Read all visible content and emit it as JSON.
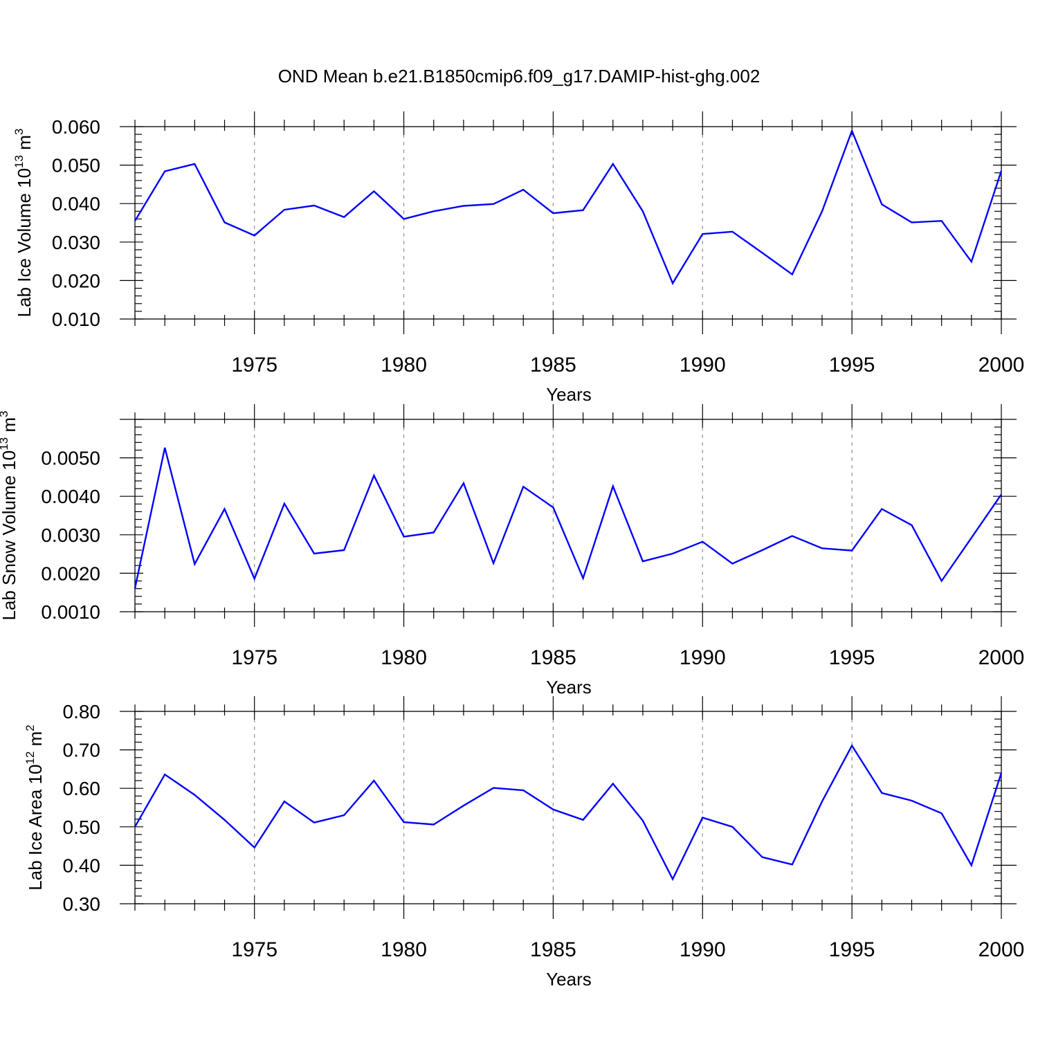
{
  "chart_data": [
    {
      "type": "line",
      "title": "OND Mean b.e21.B1850cmip6.f09_g17.DAMIP-hist-ghg.002",
      "xlabel": "Years",
      "ylabel": {
        "prefix": "Lab Ice Volume 10",
        "exponent": "13",
        "unit": " m",
        "unit_exponent": "3"
      },
      "xlim": [
        1971,
        2000
      ],
      "ylim": [
        0.01,
        0.06
      ],
      "yticks": [
        0.01,
        0.02,
        0.03,
        0.04,
        0.05,
        0.06
      ],
      "ytick_labels": [
        "0.010",
        "0.020",
        "0.030",
        "0.040",
        "0.050",
        "0.060"
      ],
      "xticks": [
        1975,
        1980,
        1985,
        1990,
        1995,
        2000
      ],
      "xtick_labels": [
        "1975",
        "1980",
        "1985",
        "1990",
        "1995",
        "2000"
      ],
      "grid": "dashed vertical lines at labeled x ticks",
      "color": "#0000ff",
      "x": [
        1971,
        1972,
        1973,
        1974,
        1975,
        1976,
        1977,
        1978,
        1979,
        1980,
        1981,
        1982,
        1983,
        1984,
        1985,
        1986,
        1987,
        1988,
        1989,
        1990,
        1991,
        1992,
        1993,
        1994,
        1995,
        1996,
        1997,
        1998,
        1999,
        2000
      ],
      "values": [
        0.0355,
        0.0484,
        0.0503,
        0.0351,
        0.0317,
        0.0384,
        0.0395,
        0.0365,
        0.0432,
        0.036,
        0.038,
        0.0394,
        0.0399,
        0.0436,
        0.0375,
        0.0383,
        0.0503,
        0.038,
        0.0193,
        0.0321,
        0.0327,
        0.0272,
        0.0216,
        0.038,
        0.0589,
        0.0398,
        0.0351,
        0.0355,
        0.0249,
        0.0485
      ]
    },
    {
      "type": "line",
      "title": "",
      "xlabel": "Years",
      "ylabel": {
        "prefix": "Lab Snow Volume 10",
        "exponent": "13",
        "unit": " m",
        "unit_exponent": "3"
      },
      "xlim": [
        1971,
        2000
      ],
      "ylim": [
        0.001,
        0.006
      ],
      "yticks": [
        0.001,
        0.002,
        0.003,
        0.004,
        0.005
      ],
      "ytick_labels": [
        "0.0010",
        "0.0020",
        "0.0030",
        "0.0040",
        "0.0050"
      ],
      "xticks": [
        1975,
        1980,
        1985,
        1990,
        1995,
        2000
      ],
      "xtick_labels": [
        "1975",
        "1980",
        "1985",
        "1990",
        "1995",
        "2000"
      ],
      "grid": "dashed vertical lines at labeled x ticks",
      "color": "#0000ff",
      "x": [
        1971,
        1972,
        1973,
        1974,
        1975,
        1976,
        1977,
        1978,
        1979,
        1980,
        1981,
        1982,
        1983,
        1984,
        1985,
        1986,
        1987,
        1988,
        1989,
        1990,
        1991,
        1992,
        1993,
        1994,
        1995,
        1996,
        1997,
        1998,
        1999,
        2000
      ],
      "values": [
        0.00161,
        0.00526,
        0.00224,
        0.00367,
        0.00186,
        0.00381,
        0.00251,
        0.0026,
        0.00454,
        0.00295,
        0.00306,
        0.00434,
        0.00226,
        0.00425,
        0.00371,
        0.00187,
        0.00426,
        0.00231,
        0.00251,
        0.00282,
        0.00225,
        0.0026,
        0.00297,
        0.00265,
        0.00259,
        0.00367,
        0.00325,
        0.0018,
        0.00292,
        0.00405
      ]
    },
    {
      "type": "line",
      "title": "",
      "xlabel": "Years",
      "ylabel": {
        "prefix": "Lab Ice Area 10",
        "exponent": "12",
        "unit": " m",
        "unit_exponent": "2"
      },
      "xlim": [
        1971,
        2000
      ],
      "ylim": [
        0.3,
        0.8
      ],
      "yticks": [
        0.3,
        0.4,
        0.5,
        0.6,
        0.7,
        0.8
      ],
      "ytick_labels": [
        "0.30",
        "0.40",
        "0.50",
        "0.60",
        "0.70",
        "0.80"
      ],
      "xticks": [
        1975,
        1980,
        1985,
        1990,
        1995,
        2000
      ],
      "xtick_labels": [
        "1975",
        "1980",
        "1985",
        "1990",
        "1995",
        "2000"
      ],
      "grid": "dashed vertical lines at labeled x ticks",
      "color": "#0000ff",
      "x": [
        1971,
        1972,
        1973,
        1974,
        1975,
        1976,
        1977,
        1978,
        1979,
        1980,
        1981,
        1982,
        1983,
        1984,
        1985,
        1986,
        1987,
        1988,
        1989,
        1990,
        1991,
        1992,
        1993,
        1994,
        1995,
        1996,
        1997,
        1998,
        1999,
        2000
      ],
      "values": [
        0.5,
        0.636,
        0.583,
        0.518,
        0.446,
        0.566,
        0.511,
        0.53,
        0.62,
        0.512,
        0.506,
        0.555,
        0.601,
        0.595,
        0.545,
        0.518,
        0.612,
        0.516,
        0.364,
        0.524,
        0.5,
        0.421,
        0.402,
        0.566,
        0.711,
        0.588,
        0.568,
        0.535,
        0.4,
        0.64
      ]
    }
  ]
}
